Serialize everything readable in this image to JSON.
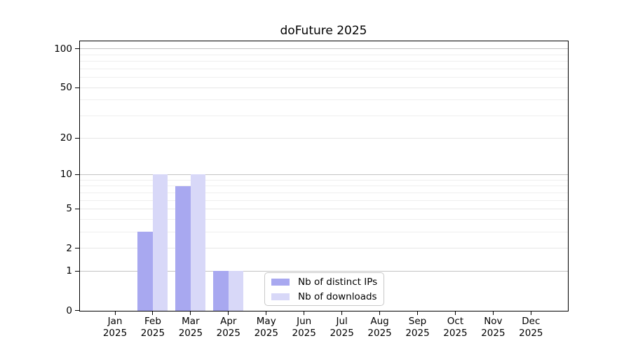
{
  "chart_data": {
    "type": "bar",
    "title": "doFuture 2025",
    "months": [
      "Jan",
      "Feb",
      "Mar",
      "Apr",
      "May",
      "Jun",
      "Jul",
      "Aug",
      "Sep",
      "Oct",
      "Nov",
      "Dec"
    ],
    "year": "2025",
    "series": [
      {
        "name": "Nb of distinct IPs",
        "color": "#a8a8f0",
        "values": [
          0,
          3,
          8,
          1,
          0,
          0,
          0,
          0,
          0,
          0,
          0,
          0
        ]
      },
      {
        "name": "Nb of downloads",
        "color": "#d8d8f8",
        "values": [
          0,
          10,
          10,
          1,
          0,
          0,
          0,
          0,
          0,
          0,
          0,
          0
        ]
      }
    ],
    "y_axis": {
      "scale": "log10(value+1)",
      "tick_values": [
        0,
        1,
        2,
        5,
        10,
        20,
        50,
        100
      ],
      "tick_labels": [
        "0",
        "1",
        "2",
        "5",
        "10",
        "20",
        "50",
        "100"
      ],
      "decade_gridlines": [
        1,
        10,
        100
      ],
      "minor_gridlines": [
        3,
        4,
        6,
        7,
        8,
        9,
        30,
        40,
        60,
        70,
        80,
        90
      ],
      "range": [
        0,
        115
      ]
    },
    "legend": {
      "position": "inside-bottom-center",
      "entries": [
        "Nb of distinct IPs",
        "Nb of downloads"
      ]
    },
    "grid": true,
    "background": "#ffffff"
  }
}
